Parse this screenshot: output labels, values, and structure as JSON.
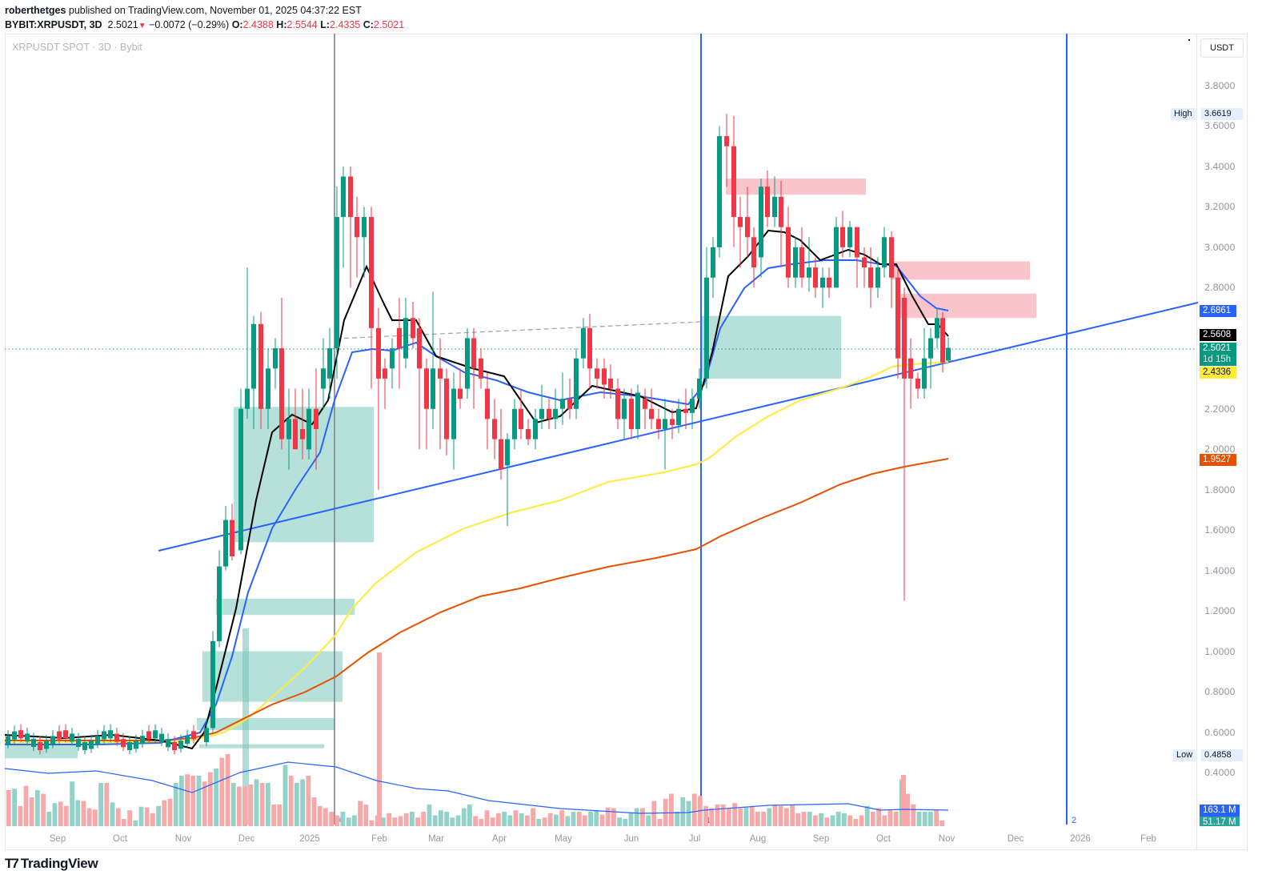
{
  "header": {
    "author": "roberthetges",
    "published": " published on TradingView.com, November 01, 2025 04:37:22 EST",
    "symbol": "BYBIT:XRPUSDT, 3D",
    "last": "2.5021",
    "change": "−0.0072 (−0.29%)",
    "o_label": "O:",
    "o": "2.4388",
    "h_label": "H:",
    "h": "2.5544",
    "l_label": "L:",
    "l": "2.4335",
    "c_label": "C:",
    "c": "2.5021"
  },
  "legend": "XRPUSDT SPOT · 3D · Bybit",
  "unit_button": "USDT",
  "price_ticks": [
    "3.8000",
    "3.6000",
    "3.4000",
    "3.2000",
    "3.0000",
    "2.8000",
    "2.2000",
    "2.0000",
    "1.8000",
    "1.6000",
    "1.4000",
    "1.2000",
    "1.0000",
    "0.8000",
    "0.6000",
    "0.4000"
  ],
  "price_labels": {
    "high_tag": "High",
    "high": "3.6619",
    "low_tag": "Low",
    "low": "0.4858",
    "trendline": "2.6861",
    "ema_fast": "2.5608",
    "last": "2.5021",
    "countdown": "1d 15h",
    "ma_mid": "2.4336",
    "ma_slow": "1.9527",
    "vol_ma": "163.1 M",
    "vol": "51.17 M"
  },
  "time_labels": [
    "Sep",
    "Oct",
    "Nov",
    "Dec",
    "2025",
    "Feb",
    "Mar",
    "Apr",
    "May",
    "Jun",
    "Jul",
    "Aug",
    "Sep",
    "Oct",
    "Nov",
    "Dec",
    "2026",
    "Feb"
  ],
  "vline_labels": [
    "0",
    "1",
    "2"
  ],
  "footer": {
    "brand": "TradingView"
  },
  "colors": {
    "up": "#089981",
    "down": "#f23645",
    "vol_up": "#92d2c9",
    "vol_down": "#f7a9a9",
    "ema_fast": "#000000",
    "ema_blue": "#2962ff",
    "ma_yellow": "#ffeb3b",
    "ma_orange": "#e65100",
    "zone_green": "#b2dfd8",
    "zone_red": "#f9c2c8"
  },
  "chart_data": {
    "type": "candlestick",
    "title": "XRPUSDT SPOT · 3D · Bybit",
    "xlabel": "",
    "ylabel": "USDT",
    "ylim": [
      0.3,
      3.9
    ],
    "x_range": [
      "2024-08",
      "2026-02"
    ],
    "ohlc_last": {
      "open": 2.4388,
      "high": 2.5544,
      "low": 2.4335,
      "close": 2.5021
    },
    "all_time_high_visible": 3.6619,
    "low_visible": 0.4858,
    "indicators": [
      {
        "name": "EMA fast (black)",
        "last": 2.5608
      },
      {
        "name": "EMA (blue)",
        "last": 2.6861
      },
      {
        "name": "MA (yellow)",
        "last": 2.4336
      },
      {
        "name": "MA slow (orange)",
        "last": 1.9527
      }
    ],
    "volume": {
      "last": "51.17 M",
      "ma": "163.1 M"
    },
    "approx_swing_points": [
      {
        "date": "2024-11-05",
        "price": 0.5
      },
      {
        "date": "2024-12-03",
        "price": 2.9
      },
      {
        "date": "2025-01-16",
        "price": 3.4
      },
      {
        "date": "2025-04-07",
        "price": 1.61
      },
      {
        "date": "2025-07-18",
        "price": 3.66
      },
      {
        "date": "2025-10-10",
        "price": 1.25
      },
      {
        "date": "2025-10-31",
        "price": 2.5
      }
    ],
    "zones": [
      {
        "kind": "supply",
        "from": 3.26,
        "to": 3.34
      },
      {
        "kind": "supply",
        "from": 2.84,
        "to": 2.93
      },
      {
        "kind": "supply",
        "from": 2.65,
        "to": 2.77
      },
      {
        "kind": "demand",
        "from": 2.35,
        "to": 2.66
      },
      {
        "kind": "demand",
        "from": 1.54,
        "to": 2.21
      }
    ]
  }
}
